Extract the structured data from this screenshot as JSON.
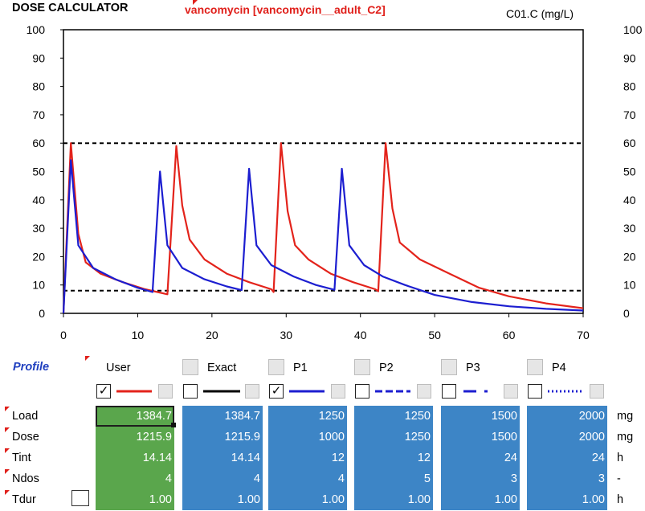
{
  "header": {
    "title": "DOSE CALCULATOR",
    "drug": "vancomycin [vancomycin__adult_C2]",
    "unit_label": "C01.C (mg/L)"
  },
  "chart_data": {
    "type": "line",
    "title": "",
    "xlabel": "",
    "ylabel": "C01.C (mg/L)",
    "xlim": [
      0,
      70
    ],
    "ylim": [
      0,
      100
    ],
    "x_ticks": [
      0,
      10,
      20,
      30,
      40,
      50,
      60,
      70
    ],
    "y_ticks": [
      0,
      10,
      20,
      30,
      40,
      50,
      60,
      70,
      80,
      90,
      100
    ],
    "reference_lines": [
      60,
      8
    ],
    "series": [
      {
        "name": "User",
        "color": "#e3231b",
        "points": [
          [
            0,
            0
          ],
          [
            1,
            60
          ],
          [
            2,
            28
          ],
          [
            3,
            18
          ],
          [
            5,
            14
          ],
          [
            8,
            11
          ],
          [
            11,
            8.5
          ],
          [
            14,
            6.7
          ],
          [
            15.2,
            59
          ],
          [
            16,
            38
          ],
          [
            17,
            26
          ],
          [
            19,
            19
          ],
          [
            22,
            14
          ],
          [
            25,
            11
          ],
          [
            28,
            8.5
          ],
          [
            28.3,
            7.5
          ],
          [
            29.3,
            60
          ],
          [
            30.2,
            36
          ],
          [
            31.2,
            24
          ],
          [
            33,
            19
          ],
          [
            36,
            14
          ],
          [
            39,
            11
          ],
          [
            42,
            8.5
          ],
          [
            42.4,
            7.8
          ],
          [
            43.4,
            60
          ],
          [
            44.3,
            37
          ],
          [
            45.3,
            25
          ],
          [
            48,
            19
          ],
          [
            52,
            14
          ],
          [
            56,
            9
          ],
          [
            60,
            6
          ],
          [
            65,
            3.5
          ],
          [
            70,
            1.8
          ]
        ]
      },
      {
        "name": "P1",
        "color": "#1c1ed0",
        "points": [
          [
            0,
            0
          ],
          [
            1,
            54
          ],
          [
            2,
            24
          ],
          [
            4,
            16
          ],
          [
            7,
            12
          ],
          [
            10,
            9
          ],
          [
            12,
            7.5
          ],
          [
            13,
            50
          ],
          [
            14,
            24
          ],
          [
            16,
            16
          ],
          [
            19,
            12
          ],
          [
            22,
            9.5
          ],
          [
            24,
            8.2
          ],
          [
            25,
            51
          ],
          [
            26,
            24
          ],
          [
            28,
            17
          ],
          [
            31,
            13
          ],
          [
            34,
            10
          ],
          [
            36.5,
            8.3
          ],
          [
            37.5,
            51
          ],
          [
            38.5,
            24
          ],
          [
            40.5,
            17
          ],
          [
            43,
            13
          ],
          [
            46,
            10
          ],
          [
            50,
            6.5
          ],
          [
            55,
            4
          ],
          [
            60,
            2.5
          ],
          [
            65,
            1.6
          ],
          [
            70,
            1
          ]
        ]
      }
    ]
  },
  "table": {
    "profile_label": "Profile",
    "columns": [
      {
        "label": "User",
        "checked": true,
        "line_style": "solid-red"
      },
      {
        "label": "Exact",
        "checked": false,
        "line_style": "solid-black"
      },
      {
        "label": "P1",
        "checked": true,
        "line_style": "solid-blue"
      },
      {
        "label": "P2",
        "checked": false,
        "line_style": "dashed-blue"
      },
      {
        "label": "P3",
        "checked": false,
        "line_style": "dashdot-blue"
      },
      {
        "label": "P4",
        "checked": false,
        "line_style": "dotted-blue"
      }
    ],
    "rows": [
      {
        "label": "Load",
        "unit": "mg",
        "values": [
          "1384.7",
          "1384.7",
          "1250",
          "1250",
          "1500",
          "2000"
        ]
      },
      {
        "label": "Dose",
        "unit": "mg",
        "values": [
          "1215.9",
          "1215.9",
          "1000",
          "1250",
          "1500",
          "2000"
        ]
      },
      {
        "label": "Tint",
        "unit": "h",
        "values": [
          "14.14",
          "14.14",
          "12",
          "12",
          "24",
          "24"
        ]
      },
      {
        "label": "Ndos",
        "unit": "-",
        "values": [
          "4",
          "4",
          "4",
          "5",
          "3",
          "3"
        ]
      },
      {
        "label": "Tdur",
        "unit": "h",
        "values": [
          "1.00",
          "1.00",
          "1.00",
          "1.00",
          "1.00",
          "1.00"
        ]
      }
    ],
    "check_mark": "✓"
  }
}
